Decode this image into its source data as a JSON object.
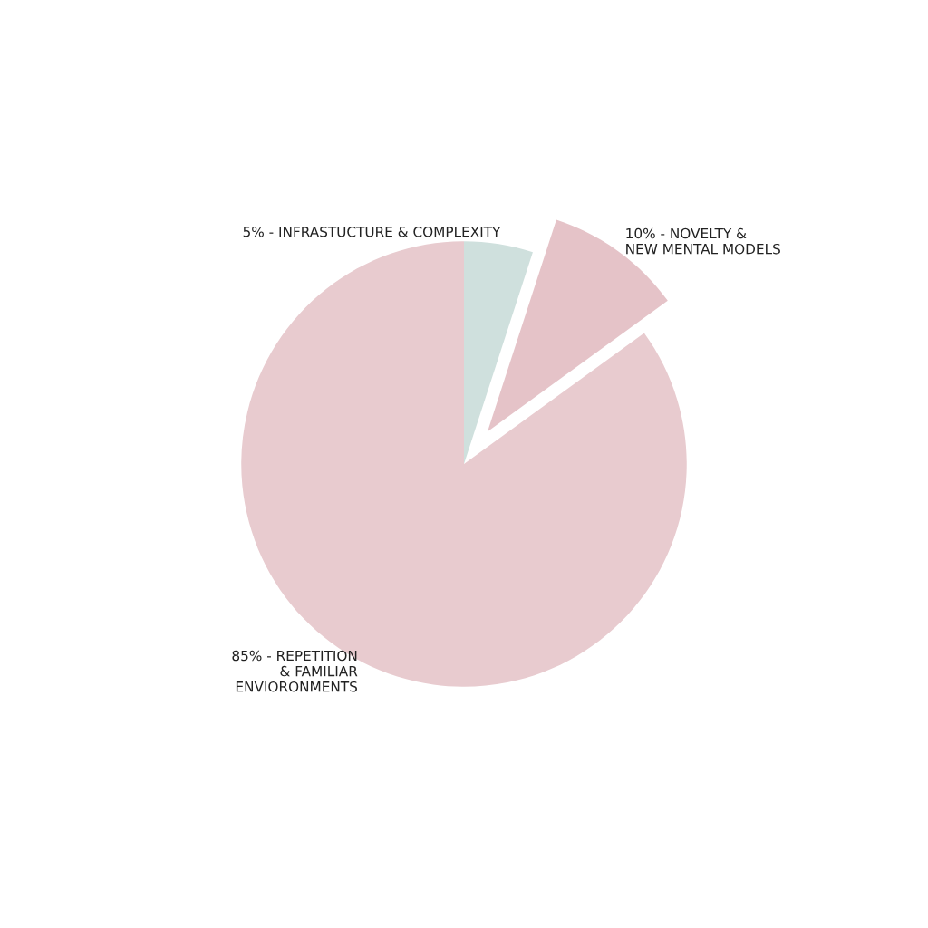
{
  "chart_data": {
    "type": "pie",
    "categories": [
      "5% - INFRASTUCTURE & COMPLEXITY",
      "10% - NOVELTY &\nNEW MENTAL MODELS",
      "85% - REPETITION\n& FAMILIAR\nENVIORONMENTS"
    ],
    "values": [
      5,
      10,
      85
    ],
    "colors": [
      "#cfe0dd",
      "#e5c3c8",
      "#e8cbcf"
    ],
    "legend": false
  }
}
